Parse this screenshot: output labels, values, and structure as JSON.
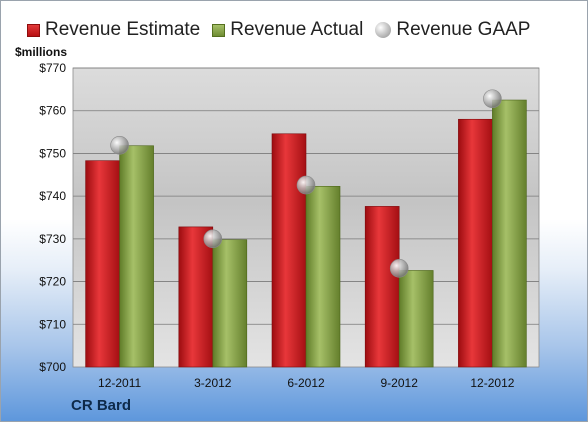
{
  "legend": {
    "estimate": "Revenue Estimate",
    "actual": "Revenue Actual",
    "gaap": "Revenue GAAP"
  },
  "company": "CR Bard",
  "colors": {
    "estimate": "#c8141a",
    "actual": "#7f9c3c",
    "gaap": "#a8a8a8"
  },
  "chart_data": {
    "type": "bar",
    "title": "",
    "xlabel": "",
    "ylabel": "$millions",
    "ylim": [
      700,
      770
    ],
    "yticks": [
      "$700",
      "$710",
      "$720",
      "$730",
      "$740",
      "$750",
      "$760",
      "$770"
    ],
    "categories": [
      "12-2011",
      "3-2012",
      "6-2012",
      "9-2012",
      "12-2012"
    ],
    "series": [
      {
        "name": "Revenue Estimate",
        "type": "bar",
        "values": [
          748.3,
          732.8,
          754.6,
          737.6,
          758.0
        ]
      },
      {
        "name": "Revenue Actual",
        "type": "bar",
        "values": [
          751.8,
          729.8,
          742.3,
          722.6,
          762.5
        ]
      },
      {
        "name": "Revenue GAAP",
        "type": "scatter",
        "values": [
          751.9,
          730.0,
          742.6,
          723.1,
          762.8
        ]
      }
    ],
    "grid": true,
    "legend_position": "top"
  }
}
